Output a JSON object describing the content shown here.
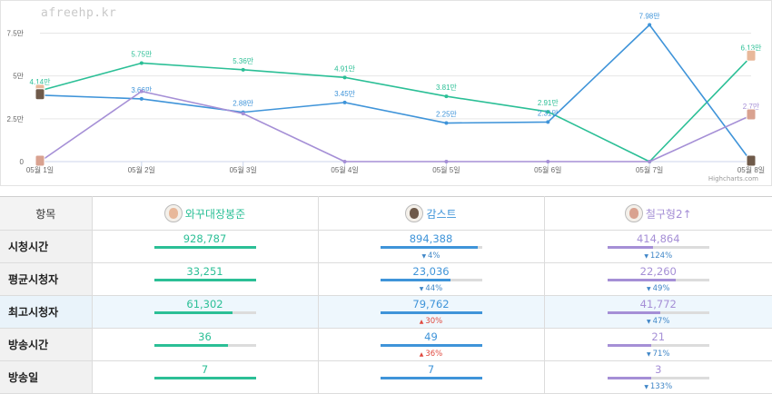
{
  "watermark": "afreehp.kr",
  "credits": "Highcharts.com",
  "colors": {
    "c1": "#2bbf96",
    "c2": "#3f94d9",
    "c3": "#a58fd6",
    "down": "#3f86c7",
    "up": "#e0493f"
  },
  "chart_data": {
    "type": "line",
    "categories": [
      "05월 1일",
      "05월 2일",
      "05월 3일",
      "05월 4일",
      "05월 5일",
      "05월 6일",
      "05월 7일",
      "05월 8일"
    ],
    "yticks": [
      "0",
      "2.5만",
      "5만",
      "7.5만"
    ],
    "ylim": [
      0,
      80000
    ],
    "grid": true,
    "legend": "none",
    "series": [
      {
        "name": "와꾸대장봉준",
        "color": "#2bbf96",
        "values": [
          41400,
          57500,
          53600,
          49100,
          38100,
          29100,
          0,
          61300
        ],
        "labels": [
          "4.14만",
          "5.75만",
          "5.36만",
          "4.91만",
          "3.81만",
          "2.91만",
          "",
          "6.13만"
        ]
      },
      {
        "name": "감스트",
        "color": "#3f94d9",
        "values": [
          38800,
          36600,
          28800,
          34500,
          22500,
          23100,
          79800,
          0
        ],
        "labels": [
          "",
          "3.66만",
          "2.88만",
          "3.45만",
          "2.25만",
          "2.31만",
          "7.98만",
          ""
        ]
      },
      {
        "name": "철구형2↑",
        "color": "#a58fd6",
        "values": [
          0,
          41000,
          28000,
          0,
          0,
          0,
          0,
          27000
        ],
        "labels": [
          "",
          "",
          "",
          "",
          "",
          "",
          "",
          "2.7만"
        ]
      }
    ]
  },
  "table": {
    "header_label": "항목",
    "channels": [
      {
        "name": "와꾸대장봉준",
        "color": "#2bbf96",
        "face": "#e8b89a"
      },
      {
        "name": "감스트",
        "color": "#3f94d9",
        "face": "#6f5a4a"
      },
      {
        "name": "철구형2↑",
        "color": "#a58fd6",
        "face": "#d9a290"
      }
    ],
    "rows": [
      {
        "label": "시청시간",
        "highlight": false,
        "cells": [
          {
            "value": "928,787",
            "fill": 1.0
          },
          {
            "value": "894,388",
            "fill": 0.96,
            "diff": "4%",
            "dir": "down"
          },
          {
            "value": "414,864",
            "fill": 0.45,
            "diff": "124%",
            "dir": "down"
          }
        ]
      },
      {
        "label": "평균시청자",
        "highlight": false,
        "cells": [
          {
            "value": "33,251",
            "fill": 1.0
          },
          {
            "value": "23,036",
            "fill": 0.69,
            "diff": "44%",
            "dir": "down"
          },
          {
            "value": "22,260",
            "fill": 0.67,
            "diff": "49%",
            "dir": "down"
          }
        ]
      },
      {
        "label": "최고시청자",
        "highlight": true,
        "cells": [
          {
            "value": "61,302",
            "fill": 0.77
          },
          {
            "value": "79,762",
            "fill": 1.0,
            "diff": "30%",
            "dir": "up"
          },
          {
            "value": "41,772",
            "fill": 0.52,
            "diff": "47%",
            "dir": "down"
          }
        ]
      },
      {
        "label": "방송시간",
        "highlight": false,
        "cells": [
          {
            "value": "36",
            "fill": 0.73
          },
          {
            "value": "49",
            "fill": 1.0,
            "diff": "36%",
            "dir": "up"
          },
          {
            "value": "21",
            "fill": 0.43,
            "diff": "71%",
            "dir": "down"
          }
        ]
      },
      {
        "label": "방송일",
        "highlight": false,
        "cells": [
          {
            "value": "7",
            "fill": 1.0
          },
          {
            "value": "7",
            "fill": 1.0
          },
          {
            "value": "3",
            "fill": 0.43,
            "diff": "133%",
            "dir": "down"
          }
        ]
      }
    ]
  }
}
